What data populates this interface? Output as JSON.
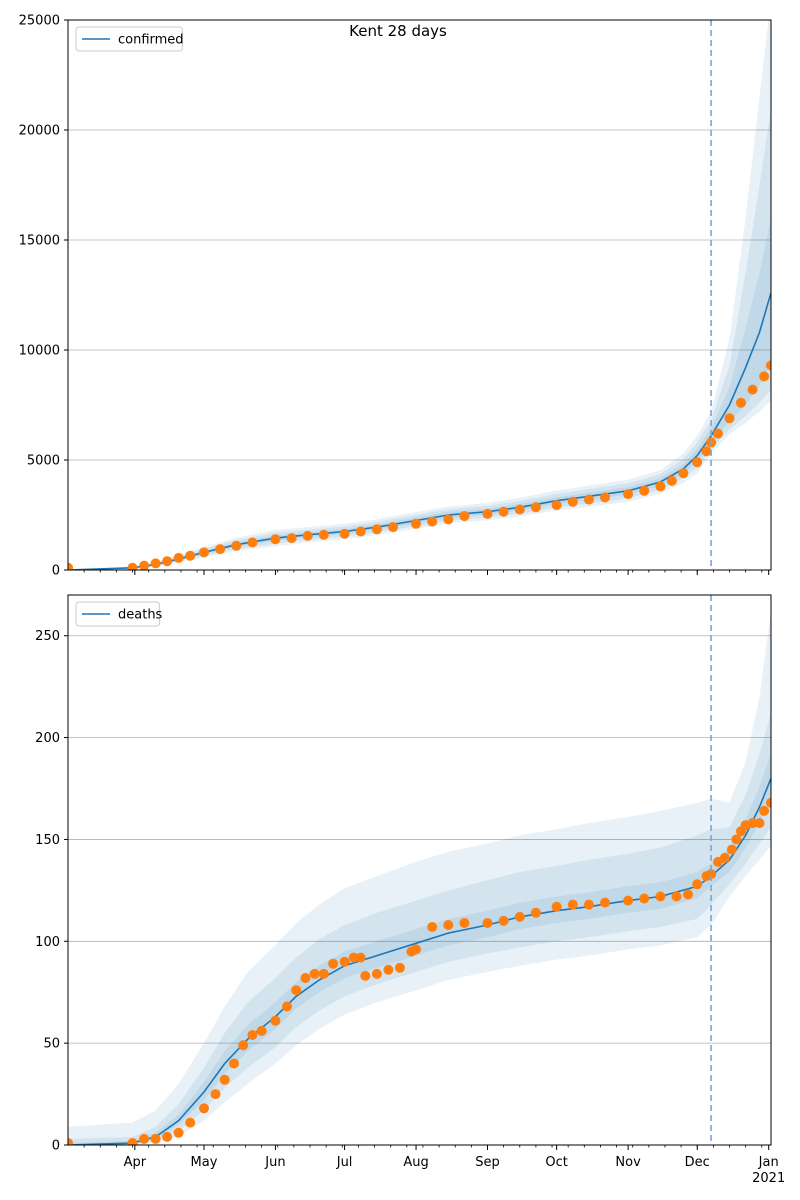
{
  "figure": {
    "title": "Kent 28 days"
  },
  "colors": {
    "model_line": "#1f77b4",
    "observed": "#ff7f0e",
    "band": "#1f77b4",
    "grid": "#b0b0b0",
    "marker_line": "#7aa7cf"
  },
  "chart_data": [
    {
      "type": "line",
      "name": "confirmed-panel",
      "legend": [
        "confirmed"
      ],
      "legend_position": "upper-left",
      "grid": "horizontal",
      "x_range": [
        "2020-03-03",
        "2021-01-02"
      ],
      "ylim": [
        0,
        25000
      ],
      "y_ticks": [
        0,
        5000,
        10000,
        15000,
        20000,
        25000
      ],
      "y_tick_labels": [
        "0",
        "5000",
        "10000",
        "15000",
        "20000",
        "25000"
      ],
      "marker_date": "2020-12-07",
      "model": {
        "dates": [
          "2020-03-03",
          "2020-03-31",
          "2020-04-10",
          "2020-04-20",
          "2020-05-01",
          "2020-05-15",
          "2020-06-01",
          "2020-06-15",
          "2020-07-01",
          "2020-07-15",
          "2020-08-01",
          "2020-08-15",
          "2020-09-01",
          "2020-09-15",
          "2020-10-01",
          "2020-10-15",
          "2020-11-01",
          "2020-11-15",
          "2020-11-25",
          "2020-12-01",
          "2020-12-07",
          "2020-12-15",
          "2020-12-22",
          "2020-12-28",
          "2021-01-02"
        ],
        "values": [
          0,
          100,
          250,
          500,
          800,
          1150,
          1450,
          1600,
          1750,
          1950,
          2250,
          2500,
          2650,
          2850,
          3150,
          3350,
          3600,
          4000,
          4600,
          5200,
          6100,
          7500,
          9200,
          10800,
          12600
        ],
        "bands": [
          {
            "lower": [
              0,
              80,
              210,
              440,
              720,
              1050,
              1330,
              1490,
              1640,
              1830,
              2110,
              2360,
              2510,
              2700,
              2990,
              3180,
              3430,
              3820,
              4380,
              4900,
              5750,
              6750,
              7500,
              8400,
              9400
            ],
            "upper": [
              0,
              120,
              290,
              560,
              880,
              1250,
              1570,
              1710,
              1860,
              2070,
              2390,
              2640,
              2790,
              3000,
              3310,
              3520,
              3770,
              4180,
              4820,
              5500,
              6450,
              8300,
              11000,
              13500,
              16000
            ]
          },
          {
            "lower": [
              0,
              60,
              180,
              390,
              640,
              950,
              1200,
              1370,
              1520,
              1710,
              1990,
              2230,
              2380,
              2560,
              2840,
              3020,
              3260,
              3640,
              4170,
              4650,
              5500,
              6400,
              7000,
              7600,
              8200
            ],
            "upper": [
              0,
              140,
              320,
              620,
              960,
              1360,
              1700,
              1830,
              1980,
              2190,
              2510,
              2760,
              2920,
              3140,
              3460,
              3680,
              3940,
              4360,
              5050,
              5800,
              6800,
              9300,
              13500,
              17500,
              21000
            ]
          },
          {
            "lower": [
              0,
              40,
              150,
              340,
              560,
              860,
              1080,
              1250,
              1400,
              1590,
              1870,
              2110,
              2260,
              2430,
              2700,
              2870,
              3100,
              3470,
              3960,
              4400,
              5300,
              6150,
              6700,
              7200,
              7700
            ],
            "upper": [
              0,
              160,
              360,
              680,
              1050,
              1460,
              1830,
              1950,
              2100,
              2310,
              2630,
              2880,
              3050,
              3280,
              3610,
              3840,
              4110,
              4540,
              5280,
              6100,
              7200,
              10500,
              16000,
              21500,
              26000
            ]
          }
        ]
      },
      "observed": {
        "dates": [
          "2020-03-03",
          "2020-03-31",
          "2020-04-05",
          "2020-04-10",
          "2020-04-15",
          "2020-04-20",
          "2020-04-25",
          "2020-05-01",
          "2020-05-08",
          "2020-05-15",
          "2020-05-22",
          "2020-06-01",
          "2020-06-08",
          "2020-06-15",
          "2020-06-22",
          "2020-07-01",
          "2020-07-08",
          "2020-07-15",
          "2020-07-22",
          "2020-08-01",
          "2020-08-08",
          "2020-08-15",
          "2020-08-22",
          "2020-09-01",
          "2020-09-08",
          "2020-09-15",
          "2020-09-22",
          "2020-10-01",
          "2020-10-08",
          "2020-10-15",
          "2020-10-22",
          "2020-11-01",
          "2020-11-08",
          "2020-11-15",
          "2020-11-20",
          "2020-11-25",
          "2020-12-01",
          "2020-12-05",
          "2020-12-07",
          "2020-12-10",
          "2020-12-15",
          "2020-12-20",
          "2020-12-25",
          "2020-12-30",
          "2021-01-02"
        ],
        "values": [
          100,
          100,
          200,
          300,
          400,
          550,
          650,
          800,
          950,
          1100,
          1250,
          1400,
          1450,
          1550,
          1600,
          1650,
          1750,
          1850,
          1950,
          2100,
          2200,
          2300,
          2450,
          2550,
          2650,
          2750,
          2850,
          2950,
          3100,
          3200,
          3300,
          3450,
          3600,
          3800,
          4050,
          4400,
          4900,
          5400,
          5800,
          6200,
          6900,
          7600,
          8200,
          8800,
          9300
        ]
      }
    },
    {
      "type": "line",
      "name": "deaths-panel",
      "legend": [
        "deaths"
      ],
      "legend_position": "upper-left",
      "grid": "horizontal",
      "x_range": [
        "2020-03-03",
        "2021-01-02"
      ],
      "ylim": [
        0,
        270
      ],
      "y_ticks": [
        0,
        50,
        100,
        150,
        200,
        250
      ],
      "y_tick_labels": [
        "0",
        "50",
        "100",
        "150",
        "200",
        "250"
      ],
      "x_ticks": [
        "2020-04-01",
        "2020-05-01",
        "2020-06-01",
        "2020-07-01",
        "2020-08-01",
        "2020-09-01",
        "2020-10-01",
        "2020-11-01",
        "2020-12-01",
        "2021-01-01"
      ],
      "x_tick_labels": [
        "Apr",
        "May",
        "Jun",
        "Jul",
        "Aug",
        "Sep",
        "Oct",
        "Nov",
        "Dec",
        "Jan"
      ],
      "x_year_label": "2021",
      "marker_date": "2020-12-07",
      "model": {
        "dates": [
          "2020-03-03",
          "2020-03-31",
          "2020-04-10",
          "2020-04-20",
          "2020-05-01",
          "2020-05-10",
          "2020-05-20",
          "2020-06-01",
          "2020-06-10",
          "2020-06-20",
          "2020-07-01",
          "2020-07-15",
          "2020-08-01",
          "2020-08-15",
          "2020-09-01",
          "2020-09-15",
          "2020-10-01",
          "2020-10-15",
          "2020-11-01",
          "2020-11-15",
          "2020-12-01",
          "2020-12-07",
          "2020-12-15",
          "2020-12-22",
          "2020-12-28",
          "2021-01-02"
        ],
        "values": [
          0,
          1,
          4,
          12,
          26,
          40,
          52,
          63,
          73,
          81,
          88,
          93,
          99,
          104,
          108,
          112,
          115,
          117,
          120,
          122,
          127,
          132,
          140,
          152,
          166,
          180
        ],
        "bands": [
          {
            "lower": [
              0,
              0,
              3,
              10,
              22,
              35,
              46,
              57,
              67,
              75,
              82,
              87,
              93,
              98,
              102,
              106,
              109,
              111,
              114,
              116,
              121,
              127,
              134,
              146,
              158,
              170
            ],
            "upper": [
              1,
              2,
              6,
              15,
              31,
              46,
              59,
              70,
              80,
              88,
              95,
              100,
              106,
              111,
              115,
              119,
              122,
              124,
              127,
              129,
              134,
              138,
              146,
              160,
              176,
              192
            ]
          },
          {
            "lower": [
              0,
              0,
              2,
              7,
              17,
              28,
              38,
              48,
              58,
              66,
              73,
              79,
              85,
              90,
              94,
              97,
              100,
              102,
              105,
              107,
              111,
              118,
              128,
              138,
              148,
              156
            ],
            "upper": [
              3,
              4,
              9,
              20,
              38,
              55,
              70,
              82,
              92,
              101,
              108,
              114,
              120,
              125,
              130,
              134,
              137,
              140,
              143,
              146,
              152,
              155,
              156,
              172,
              192,
              212
            ]
          },
          {
            "lower": [
              0,
              0,
              1,
              4,
              12,
              21,
              30,
              40,
              49,
              57,
              64,
              70,
              76,
              81,
              85,
              88,
              91,
              93,
              96,
              98,
              102,
              108,
              122,
              132,
              140,
              147
            ],
            "upper": [
              9,
              11,
              17,
              30,
              50,
              68,
              85,
              98,
              109,
              118,
              126,
              132,
              139,
              144,
              148,
              152,
              155,
              158,
              161,
              164,
              168,
              170,
              168,
              188,
              220,
              262
            ]
          }
        ]
      },
      "observed": {
        "dates": [
          "2020-03-03",
          "2020-03-31",
          "2020-04-05",
          "2020-04-10",
          "2020-04-15",
          "2020-04-20",
          "2020-04-25",
          "2020-05-01",
          "2020-05-06",
          "2020-05-10",
          "2020-05-14",
          "2020-05-18",
          "2020-05-22",
          "2020-05-26",
          "2020-06-01",
          "2020-06-06",
          "2020-06-10",
          "2020-06-14",
          "2020-06-18",
          "2020-06-22",
          "2020-06-26",
          "2020-07-01",
          "2020-07-05",
          "2020-07-08",
          "2020-07-10",
          "2020-07-15",
          "2020-07-20",
          "2020-07-25",
          "2020-07-30",
          "2020-08-01",
          "2020-08-08",
          "2020-08-15",
          "2020-08-22",
          "2020-09-01",
          "2020-09-08",
          "2020-09-15",
          "2020-09-22",
          "2020-10-01",
          "2020-10-08",
          "2020-10-15",
          "2020-10-22",
          "2020-11-01",
          "2020-11-08",
          "2020-11-15",
          "2020-11-22",
          "2020-11-27",
          "2020-12-01",
          "2020-12-05",
          "2020-12-07",
          "2020-12-10",
          "2020-12-13",
          "2020-12-16",
          "2020-12-18",
          "2020-12-20",
          "2020-12-22",
          "2020-12-25",
          "2020-12-28",
          "2020-12-30",
          "2021-01-02"
        ],
        "values": [
          1,
          1,
          3,
          3,
          4,
          6,
          11,
          18,
          25,
          32,
          40,
          49,
          54,
          56,
          61,
          68,
          76,
          82,
          84,
          84,
          89,
          90,
          92,
          92,
          83,
          84,
          86,
          87,
          95,
          96,
          107,
          108,
          109,
          109,
          110,
          112,
          114,
          117,
          118,
          118,
          119,
          120,
          121,
          122,
          122,
          123,
          128,
          132,
          133,
          139,
          141,
          145,
          150,
          154,
          157,
          158,
          158,
          164,
          168
        ]
      }
    }
  ]
}
